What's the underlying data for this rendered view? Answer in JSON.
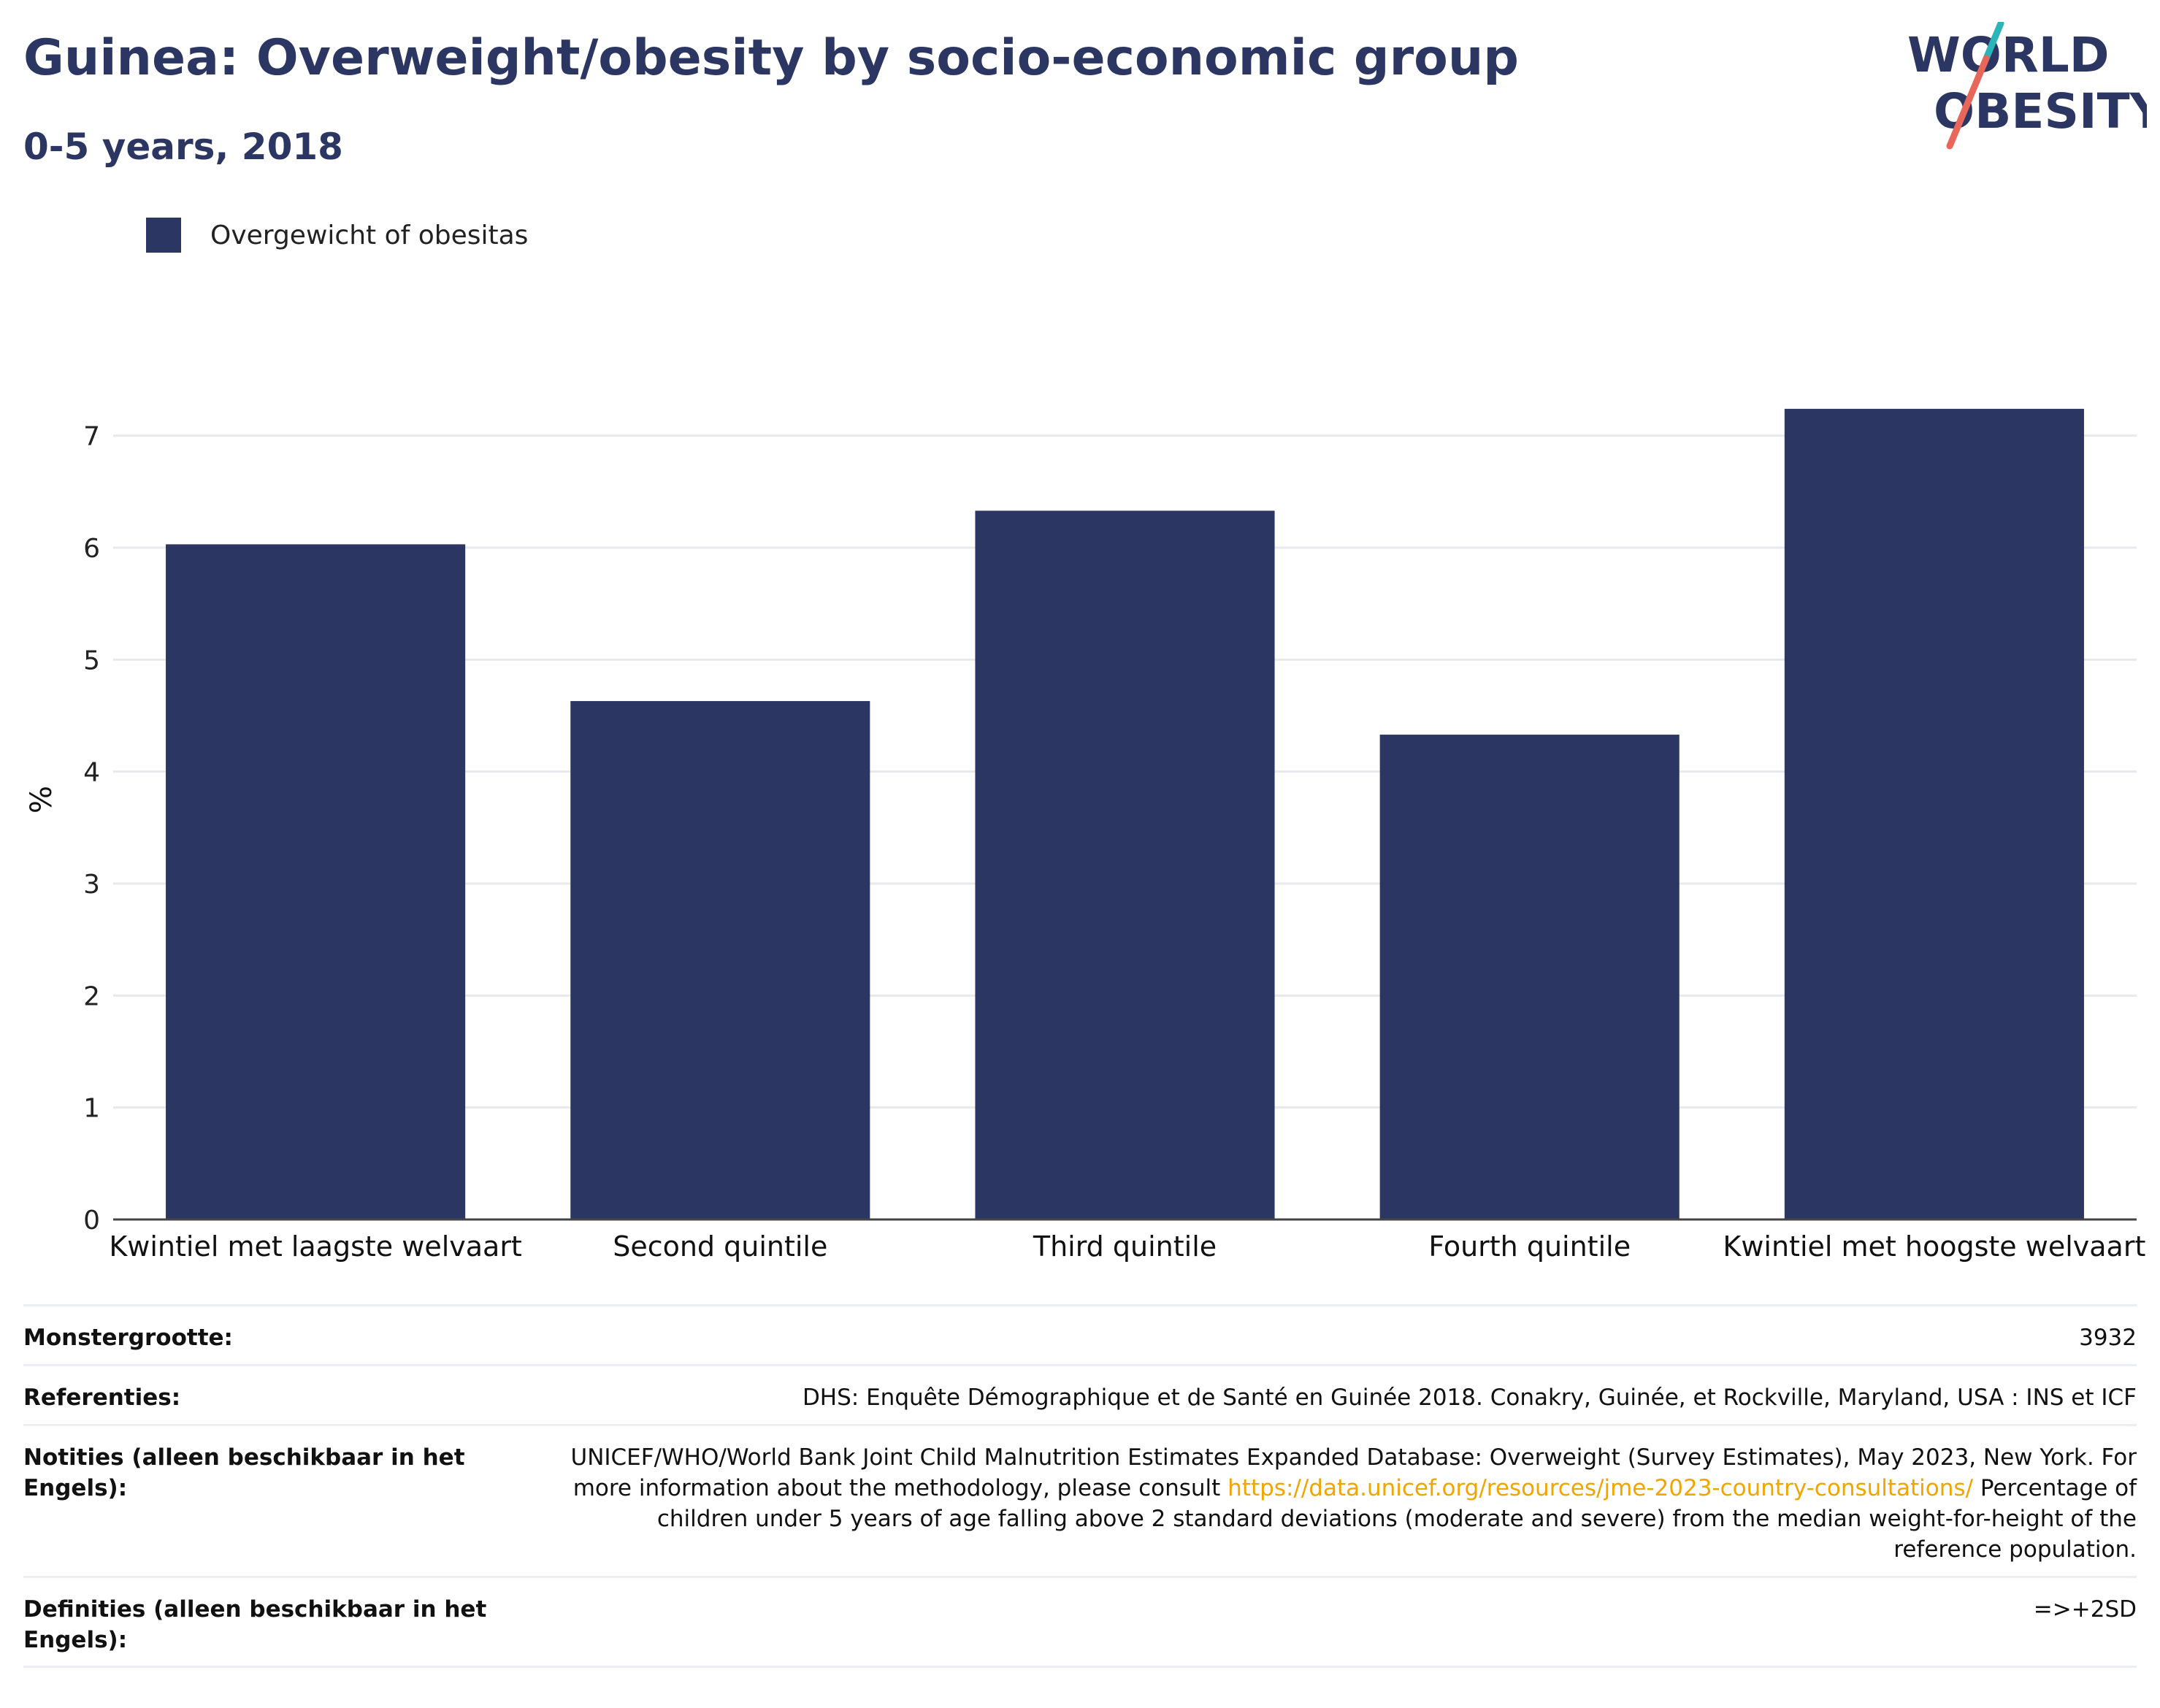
{
  "header": {
    "title": "Guinea: Overweight/obesity by socio-economic group",
    "subtitle": "0-5 years, 2018"
  },
  "logo": {
    "line1": "WORLD",
    "line2": "OBESITY",
    "accent_colors": [
      "#2bb5b8",
      "#e8675a"
    ]
  },
  "legend": {
    "items": [
      {
        "label": "Overgewicht of obesitas",
        "color": "#2b3663"
      }
    ]
  },
  "chart_data": {
    "type": "bar",
    "categories": [
      "Kwintiel met laagste welvaart",
      "Second quintile",
      "Third quintile",
      "Fourth quintile",
      "Kwintiel met hoogste welvaart"
    ],
    "series": [
      {
        "name": "Overgewicht of obesitas",
        "values": [
          6.03,
          4.63,
          6.33,
          4.33,
          7.24
        ],
        "color": "#2b3663"
      }
    ],
    "ylabel": "%",
    "ylim": [
      0,
      7.5
    ],
    "yticks": [
      0,
      1,
      2,
      3,
      4,
      5,
      6,
      7
    ],
    "grid": true,
    "legend_position": "top-left"
  },
  "footer": {
    "rows": [
      {
        "label": "Monstergrootte:",
        "value": "3932"
      },
      {
        "label": "Referenties:",
        "value": "DHS: Enquête Démographique et de Santé en Guinée 2018. Conakry, Guinée, et Rockville, Maryland, USA : INS et ICF"
      },
      {
        "label": "Notities (alleen beschikbaar in het Engels):",
        "value_before": "UNICEF/WHO/World Bank Joint Child Malnutrition Estimates Expanded Database: Overweight (Survey Estimates), May 2023, New York. For more information about the methodology, please consult ",
        "link": "https://data.unicef.org/resources/jme-2023-country-consultations/",
        "value_after": " Percentage of children under 5 years of age falling above 2 standard deviations (moderate and severe) from the median weight-for-height of the reference population."
      },
      {
        "label": "Definities (alleen beschikbaar in het Engels):",
        "value": "=>+2SD"
      }
    ]
  }
}
